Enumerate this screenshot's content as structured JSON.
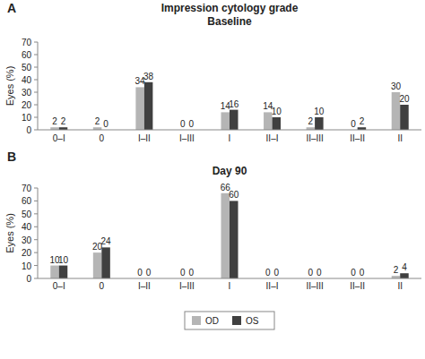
{
  "chart_data": [
    {
      "type": "bar",
      "title": "Impression cytology grade",
      "subtitle": "Baseline",
      "annotations": [
        "A"
      ],
      "y_label": "Eyes (%)",
      "categories": [
        "0–I",
        "0",
        "I–II",
        "I–III",
        "I",
        "II–I",
        "II–III",
        "II–II",
        "II"
      ],
      "series": [
        {
          "name": "OD",
          "color": "#b5b5b5",
          "values": [
            2,
            2,
            34,
            0,
            14,
            14,
            2,
            0,
            30
          ]
        },
        {
          "name": "OS",
          "color": "#404040",
          "values": [
            2,
            0,
            38,
            0,
            16,
            10,
            10,
            2,
            20
          ]
        }
      ],
      "ylim": [
        0,
        70
      ],
      "yticks": [
        0,
        10,
        20,
        30,
        40,
        50,
        60,
        70
      ],
      "grid": false,
      "data_labels": true
    },
    {
      "type": "bar",
      "title": "Day 90",
      "annotations": [
        "B"
      ],
      "y_label": "Eyes (%)",
      "categories": [
        "0–I",
        "0",
        "I–II",
        "I–III",
        "I",
        "II–I",
        "II–III",
        "II–II",
        "II"
      ],
      "series": [
        {
          "name": "OD",
          "color": "#b5b5b5",
          "values": [
            10,
            20,
            0,
            0,
            66,
            0,
            0,
            0,
            2
          ]
        },
        {
          "name": "OS",
          "color": "#404040",
          "values": [
            10,
            24,
            0,
            0,
            60,
            0,
            0,
            0,
            4
          ]
        }
      ],
      "ylim": [
        0,
        70
      ],
      "yticks": [
        0,
        10,
        20,
        30,
        40,
        50,
        60,
        70
      ],
      "grid": false,
      "data_labels": true,
      "legend": "bottom"
    }
  ]
}
